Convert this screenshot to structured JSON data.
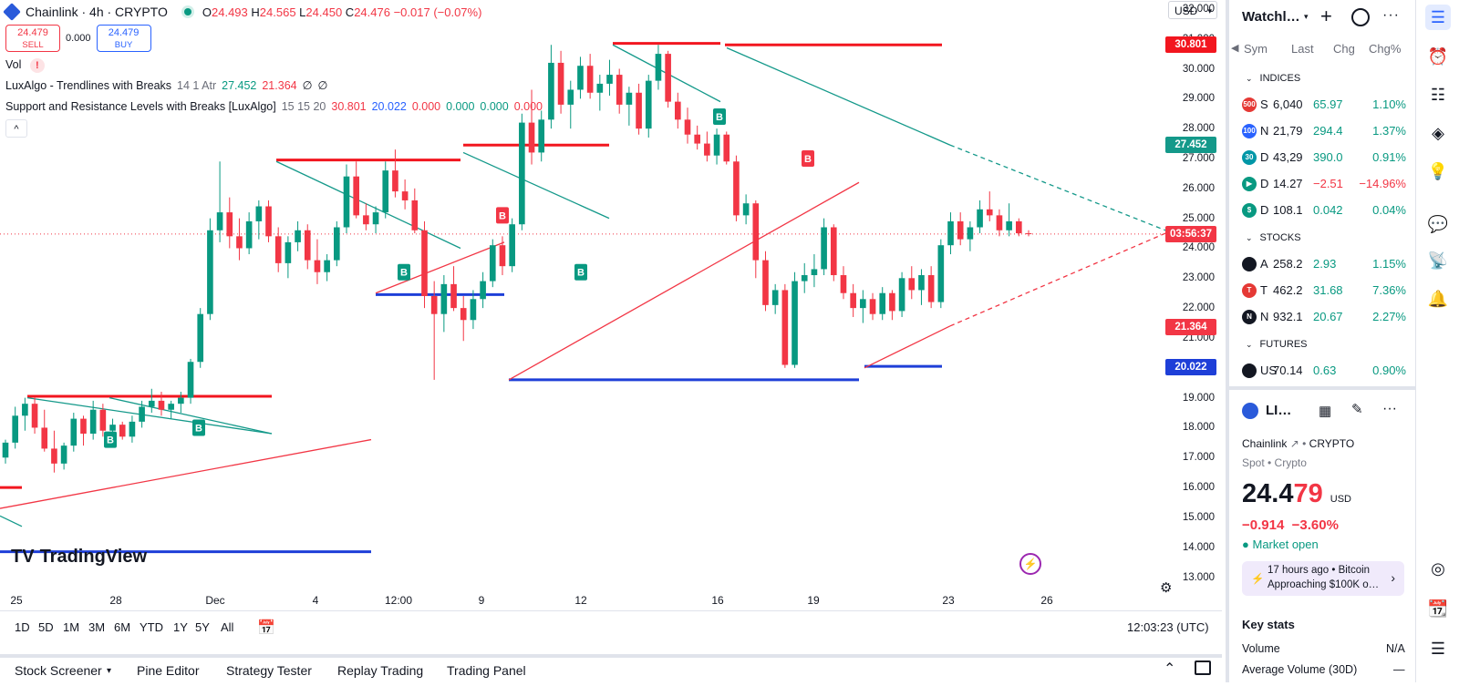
{
  "header": {
    "symbol": "Chainlink · 4h · CRYPTO",
    "ohlc": {
      "o_label": "O",
      "o": "24.493",
      "h_label": "H",
      "h": "24.565",
      "l_label": "L",
      "l": "24.450",
      "c_label": "C",
      "c": "24.476",
      "change": "−0.017 (−0.07%)"
    },
    "sell_price": "24.479",
    "sell_label": "SELL",
    "spread": "0.000",
    "buy_price": "24.479",
    "buy_label": "BUY"
  },
  "indicators": {
    "vol_label": "Vol",
    "vol_warning": "!",
    "luxalgo_name": "LuxAlgo - Trendlines with Breaks",
    "luxalgo_params": "14 1 Atr",
    "luxalgo_v1": "27.452",
    "luxalgo_v2": "21.364",
    "luxalgo_v3": "∅",
    "luxalgo_v4": "∅",
    "sr_name": "Support and Resistance Levels with Breaks [LuxAlgo]",
    "sr_params": "15 15 20",
    "sr_v1": "30.801",
    "sr_v2": "20.022",
    "sr_v3": "0.000",
    "sr_v4": "0.000",
    "sr_v5": "0.000",
    "sr_v6": "0.000",
    "collapse_glyph": "^"
  },
  "currency": "USD",
  "price_scale": {
    "ticks": [
      "32.000",
      "31.000",
      "30.000",
      "29.000",
      "28.000",
      "27.000",
      "26.000",
      "25.000",
      "24.000",
      "23.000",
      "22.000",
      "21.000",
      "20.000",
      "19.000",
      "18.000",
      "17.000",
      "16.000",
      "15.000",
      "14.000",
      "13.000"
    ],
    "labels": {
      "resistance": "30.801",
      "trend_upper": "27.452",
      "countdown": "03:56:37",
      "trend_lower": "21.364",
      "support": "20.022"
    }
  },
  "time_axis": [
    "25",
    "28",
    "Dec",
    "4",
    "12:00",
    "9",
    "12",
    "16",
    "19",
    "23",
    "26"
  ],
  "watermark": "TradingView",
  "break_marker": "B",
  "chart_data": {
    "type": "candlestick",
    "title": "Chainlink · 4h · CRYPTO",
    "ylim": [
      12.5,
      32.3
    ],
    "resistance_level": 30.801,
    "support_level": 20.022,
    "trendline_upper_value": 27.452,
    "trendline_lower_value": 21.364,
    "last_close": 24.476,
    "candles": [
      [
        17.0,
        17.6,
        16.8,
        17.5
      ],
      [
        17.5,
        18.7,
        17.3,
        18.4
      ],
      [
        18.4,
        19.0,
        17.9,
        18.8
      ],
      [
        18.8,
        19.0,
        17.8,
        18.0
      ],
      [
        18.0,
        18.6,
        17.2,
        17.3
      ],
      [
        17.3,
        17.9,
        16.5,
        16.8
      ],
      [
        16.8,
        17.5,
        16.6,
        17.4
      ],
      [
        17.4,
        18.5,
        17.2,
        18.3
      ],
      [
        18.3,
        18.4,
        17.4,
        17.8
      ],
      [
        17.8,
        18.9,
        17.6,
        18.6
      ],
      [
        18.6,
        18.8,
        17.7,
        17.9
      ],
      [
        17.9,
        18.3,
        17.5,
        18.1
      ],
      [
        18.1,
        18.2,
        17.6,
        17.7
      ],
      [
        17.7,
        18.4,
        17.5,
        18.2
      ],
      [
        18.2,
        18.9,
        18.0,
        18.7
      ],
      [
        18.7,
        19.3,
        18.5,
        18.9
      ],
      [
        18.9,
        19.2,
        18.4,
        18.6
      ],
      [
        18.6,
        18.9,
        18.3,
        18.8
      ],
      [
        18.8,
        19.2,
        18.5,
        19.0
      ],
      [
        19.0,
        20.3,
        18.8,
        20.2
      ],
      [
        20.2,
        22.0,
        20.0,
        21.8
      ],
      [
        21.8,
        25.0,
        21.6,
        24.6
      ],
      [
        24.6,
        26.9,
        24.2,
        25.2
      ],
      [
        25.2,
        25.7,
        24.0,
        24.4
      ],
      [
        24.4,
        25.0,
        23.6,
        24.0
      ],
      [
        24.0,
        25.2,
        23.8,
        24.9
      ],
      [
        24.9,
        25.6,
        24.3,
        25.4
      ],
      [
        25.4,
        25.6,
        24.2,
        24.4
      ],
      [
        24.4,
        24.7,
        23.2,
        23.5
      ],
      [
        23.5,
        24.4,
        23.0,
        24.2
      ],
      [
        24.2,
        24.9,
        23.9,
        24.6
      ],
      [
        24.6,
        24.8,
        23.3,
        23.6
      ],
      [
        23.6,
        24.3,
        22.8,
        23.2
      ],
      [
        23.2,
        23.8,
        22.9,
        23.6
      ],
      [
        23.6,
        24.9,
        23.4,
        24.7
      ],
      [
        24.7,
        26.8,
        24.5,
        26.4
      ],
      [
        26.4,
        26.9,
        25.0,
        25.1
      ],
      [
        25.1,
        25.5,
        24.6,
        24.8
      ],
      [
        24.8,
        25.4,
        24.5,
        25.2
      ],
      [
        25.2,
        26.9,
        25.0,
        26.6
      ],
      [
        26.6,
        27.3,
        25.7,
        25.9
      ],
      [
        25.9,
        26.3,
        25.3,
        25.6
      ],
      [
        25.6,
        26.0,
        24.5,
        24.6
      ],
      [
        24.6,
        24.9,
        22.0,
        22.4
      ],
      [
        22.4,
        22.9,
        19.6,
        21.8
      ],
      [
        21.8,
        23.1,
        21.2,
        22.8
      ],
      [
        22.8,
        23.4,
        21.9,
        22.0
      ],
      [
        22.0,
        22.4,
        20.9,
        21.6
      ],
      [
        21.6,
        22.6,
        21.3,
        22.3
      ],
      [
        22.3,
        23.2,
        22.0,
        22.9
      ],
      [
        22.9,
        24.3,
        22.7,
        24.1
      ],
      [
        24.1,
        24.4,
        23.1,
        23.4
      ],
      [
        23.4,
        25.0,
        23.2,
        24.8
      ],
      [
        24.8,
        28.5,
        24.6,
        28.2
      ],
      [
        28.2,
        29.3,
        26.8,
        27.2
      ],
      [
        27.2,
        28.6,
        26.9,
        28.3
      ],
      [
        28.3,
        30.8,
        28.0,
        30.2
      ],
      [
        30.2,
        30.6,
        28.5,
        28.8
      ],
      [
        28.8,
        29.6,
        28.0,
        29.3
      ],
      [
        29.3,
        30.4,
        29.0,
        30.1
      ],
      [
        30.1,
        30.5,
        29.0,
        29.2
      ],
      [
        29.2,
        29.8,
        28.6,
        29.5
      ],
      [
        29.5,
        30.3,
        29.1,
        29.8
      ],
      [
        29.8,
        30.0,
        28.5,
        28.8
      ],
      [
        28.8,
        29.4,
        28.1,
        29.2
      ],
      [
        29.2,
        29.5,
        27.8,
        28.0
      ],
      [
        28.0,
        29.8,
        27.7,
        29.6
      ],
      [
        29.6,
        30.8,
        29.3,
        30.5
      ],
      [
        30.5,
        30.6,
        28.7,
        28.9
      ],
      [
        28.9,
        29.2,
        28.0,
        28.3
      ],
      [
        28.3,
        28.7,
        27.5,
        27.8
      ],
      [
        27.8,
        28.1,
        27.3,
        27.5
      ],
      [
        27.5,
        27.9,
        26.9,
        27.1
      ],
      [
        27.1,
        28.0,
        26.8,
        27.8
      ],
      [
        27.8,
        27.9,
        26.8,
        26.9
      ],
      [
        26.9,
        27.1,
        24.9,
        25.1
      ],
      [
        25.1,
        25.8,
        24.8,
        25.5
      ],
      [
        25.5,
        25.6,
        23.0,
        23.6
      ],
      [
        23.6,
        23.9,
        21.9,
        22.1
      ],
      [
        22.1,
        22.8,
        21.8,
        22.6
      ],
      [
        22.6,
        22.8,
        20.0,
        20.1
      ],
      [
        20.1,
        23.2,
        20.0,
        22.9
      ],
      [
        22.9,
        23.5,
        22.5,
        23.1
      ],
      [
        23.1,
        23.8,
        22.7,
        23.3
      ],
      [
        23.3,
        25.0,
        23.1,
        24.7
      ],
      [
        24.7,
        24.8,
        22.9,
        23.1
      ],
      [
        23.1,
        23.4,
        22.3,
        22.5
      ],
      [
        22.5,
        22.8,
        21.7,
        22.0
      ],
      [
        22.0,
        22.6,
        21.5,
        22.3
      ],
      [
        22.3,
        22.5,
        21.6,
        21.8
      ],
      [
        21.8,
        22.7,
        21.6,
        22.5
      ],
      [
        22.5,
        22.6,
        21.6,
        21.9
      ],
      [
        21.9,
        23.2,
        21.7,
        23.0
      ],
      [
        23.0,
        23.4,
        22.3,
        22.6
      ],
      [
        22.6,
        23.3,
        22.1,
        23.1
      ],
      [
        23.1,
        23.4,
        22.0,
        22.2
      ],
      [
        22.2,
        24.3,
        22.0,
        24.1
      ],
      [
        24.1,
        25.2,
        23.8,
        24.9
      ],
      [
        24.9,
        25.2,
        24.1,
        24.3
      ],
      [
        24.3,
        24.9,
        23.9,
        24.7
      ],
      [
        24.7,
        25.6,
        24.5,
        25.3
      ],
      [
        25.3,
        25.9,
        24.9,
        25.1
      ],
      [
        25.1,
        25.3,
        24.4,
        24.6
      ],
      [
        24.6,
        25.5,
        24.4,
        24.9
      ],
      [
        24.9,
        25.0,
        24.4,
        24.5
      ],
      [
        24.5,
        24.6,
        24.4,
        24.48
      ]
    ]
  },
  "period_bar": {
    "ranges": [
      "1D",
      "5D",
      "1M",
      "3M",
      "6M",
      "YTD",
      "1Y",
      "5Y",
      "All"
    ],
    "clock": "12:03:23 (UTC)"
  },
  "bottom_tabs": [
    "Stock Screener",
    "Pine Editor",
    "Strategy Tester",
    "Replay Trading",
    "Trading Panel"
  ],
  "watchlist": {
    "title": "Watchl…",
    "columns": {
      "sym": "Sym",
      "last": "Last",
      "chg": "Chg",
      "chgp": "Chg%"
    },
    "sections": [
      {
        "name": "INDICES",
        "rows": [
          {
            "icon_text": "500",
            "icon_color": "#e53935",
            "sym": "S",
            "last": "6,040",
            "chg": "65.97",
            "chgp": "1.10%",
            "dir": "up"
          },
          {
            "icon_text": "100",
            "icon_color": "#2962ff",
            "sym": "N",
            "last": "21,79",
            "chg": "294.4",
            "chgp": "1.37%",
            "dir": "up"
          },
          {
            "icon_text": "30",
            "icon_color": "#0097a7",
            "sym": "D",
            "last": "43,29",
            "chg": "390.0",
            "chgp": "0.91%",
            "dir": "up"
          },
          {
            "icon_text": "▶",
            "icon_color": "#089981",
            "sym": "D",
            "last": "14.27",
            "chg": "−2.51",
            "chgp": "−14.96%",
            "dir": "down"
          },
          {
            "icon_text": "$",
            "icon_color": "#089981",
            "sym": "D",
            "last": "108.1",
            "chg": "0.042",
            "chgp": "0.04%",
            "dir": "up"
          }
        ]
      },
      {
        "name": "STOCKS",
        "rows": [
          {
            "icon_text": "",
            "icon_color": "#131722",
            "sym": "A",
            "last": "258.2",
            "chg": "2.93",
            "chgp": "1.15%",
            "dir": "up"
          },
          {
            "icon_text": "T",
            "icon_color": "#e53935",
            "sym": "T",
            "last": "462.2",
            "chg": "31.68",
            "chgp": "7.36%",
            "dir": "up"
          },
          {
            "icon_text": "N",
            "icon_color": "#131722",
            "sym": "N",
            "last": "932.1",
            "chg": "20.67",
            "chgp": "2.27%",
            "dir": "up"
          }
        ]
      },
      {
        "name": "FUTURES",
        "rows": [
          {
            "icon_text": "",
            "icon_color": "#131722",
            "sym": "US",
            "last": "70.14",
            "chg": "0.63",
            "chgp": "0.90%",
            "dir": "up"
          }
        ]
      }
    ]
  },
  "details": {
    "short_name": "LI…",
    "full_name": "Chainlink",
    "market": "CRYPTO",
    "type_line": "Spot • Crypto",
    "price_main": "24.4",
    "price_frac": "79",
    "currency": "USD",
    "change": "−0.914",
    "change_pct": "−3.60%",
    "market_status": "Market open",
    "news_time": "17 hours ago",
    "news_tag": "Bitcoin",
    "news_headline": "Approaching $100K o…",
    "key_stats_title": "Key stats",
    "volume_label": "Volume",
    "volume_value": "N/A",
    "avg_volume_label": "Average Volume (30D)",
    "avg_volume_value": "—"
  },
  "colors": {
    "up": "#089981",
    "down": "#f23645",
    "support": "#1e3fd8",
    "resistance": "#f2161f",
    "trend": "#14998a",
    "accent": "#2962ff"
  }
}
